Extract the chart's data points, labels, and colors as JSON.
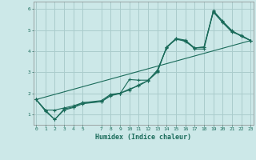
{
  "title": "",
  "xlabel": "Humidex (Indice chaleur)",
  "xlim": [
    -0.3,
    23.3
  ],
  "ylim": [
    0.5,
    6.35
  ],
  "bg_color": "#cce8e8",
  "grid_color": "#aacccc",
  "line_color": "#1a6b5a",
  "xticks": [
    0,
    1,
    2,
    3,
    4,
    5,
    7,
    8,
    9,
    10,
    11,
    12,
    13,
    14,
    15,
    16,
    17,
    18,
    19,
    20,
    21,
    22,
    23
  ],
  "yticks": [
    1,
    2,
    3,
    4,
    5,
    6
  ],
  "lines": [
    {
      "x": [
        0,
        1,
        2,
        3,
        4,
        5,
        7,
        8,
        9,
        10,
        11,
        12,
        13,
        14,
        15,
        16,
        17,
        18,
        19,
        20,
        21,
        22,
        23
      ],
      "y": [
        1.7,
        1.2,
        0.75,
        1.25,
        1.35,
        1.55,
        1.6,
        1.9,
        2.0,
        2.2,
        2.35,
        2.6,
        3.0,
        4.2,
        4.55,
        4.5,
        4.1,
        4.1,
        5.9,
        5.4,
        4.95,
        4.7,
        4.5
      ]
    },
    {
      "x": [
        0,
        1,
        2,
        3,
        4,
        5,
        7,
        8,
        9,
        10,
        11,
        12,
        13,
        14,
        15,
        16,
        17,
        18,
        19,
        20,
        21,
        22,
        23
      ],
      "y": [
        1.7,
        1.2,
        1.2,
        1.3,
        1.4,
        1.55,
        1.65,
        1.95,
        2.0,
        2.15,
        2.4,
        2.6,
        3.1,
        4.15,
        4.6,
        4.45,
        4.15,
        4.2,
        5.85,
        5.35,
        4.9,
        4.75,
        4.5
      ]
    },
    {
      "x": [
        0,
        23
      ],
      "y": [
        1.7,
        4.5
      ]
    },
    {
      "x": [
        0,
        1,
        2,
        3,
        4,
        5,
        7,
        8,
        9,
        10,
        11,
        12,
        13,
        14,
        15,
        16,
        17,
        18,
        19,
        20,
        21,
        22,
        23
      ],
      "y": [
        1.7,
        1.15,
        0.75,
        1.2,
        1.32,
        1.5,
        1.6,
        1.88,
        1.98,
        2.65,
        2.62,
        2.62,
        3.05,
        4.2,
        4.6,
        4.52,
        4.15,
        4.18,
        5.92,
        5.42,
        4.97,
        4.72,
        4.5
      ]
    }
  ]
}
